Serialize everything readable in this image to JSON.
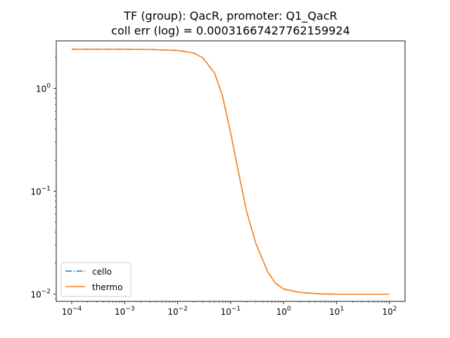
{
  "chart_data": {
    "type": "line",
    "title_line1": "TF (group): QacR, promoter: Q1_QacR",
    "title_line2": "coll err (log) = 0.00031667427762159924",
    "xlabel": "",
    "ylabel": "",
    "xscale": "log",
    "yscale": "log",
    "xlim": [
      0.0001,
      100
    ],
    "ylim": [
      0.0085,
      2.9
    ],
    "grid": false,
    "legend_position": "lower-left",
    "x_ticks": [
      {
        "value": 0.0001,
        "base": "10",
        "exp": "−4"
      },
      {
        "value": 0.001,
        "base": "10",
        "exp": "−3"
      },
      {
        "value": 0.01,
        "base": "10",
        "exp": "−2"
      },
      {
        "value": 0.1,
        "base": "10",
        "exp": "−1"
      },
      {
        "value": 1,
        "base": "10",
        "exp": "0"
      },
      {
        "value": 10,
        "base": "10",
        "exp": "1"
      },
      {
        "value": 100,
        "base": "10",
        "exp": "2"
      }
    ],
    "y_ticks": [
      {
        "value": 0.01,
        "base": "10",
        "exp": "−2"
      },
      {
        "value": 0.1,
        "base": "10",
        "exp": "−1"
      },
      {
        "value": 1,
        "base": "10",
        "exp": "0"
      }
    ],
    "x": [
      0.0001,
      0.0003,
      0.001,
      0.003,
      0.01,
      0.02,
      0.03,
      0.05,
      0.07,
      0.1,
      0.15,
      0.2,
      0.3,
      0.5,
      0.7,
      1,
      2,
      5,
      10,
      100
    ],
    "series": [
      {
        "name": "cello",
        "color": "#1f77b4",
        "linestyle": "dashdot",
        "values": [
          2.4,
          2.4,
          2.4,
          2.39,
          2.34,
          2.21,
          1.98,
          1.4,
          0.85,
          0.37,
          0.13,
          0.064,
          0.031,
          0.0165,
          0.0128,
          0.0112,
          0.0104,
          0.01005,
          0.01,
          0.01
        ]
      },
      {
        "name": "thermo",
        "color": "#ff7f0e",
        "linestyle": "solid",
        "values": [
          2.4,
          2.4,
          2.4,
          2.39,
          2.34,
          2.21,
          1.98,
          1.4,
          0.85,
          0.37,
          0.13,
          0.064,
          0.031,
          0.0165,
          0.0128,
          0.0112,
          0.0104,
          0.01005,
          0.01,
          0.01
        ]
      }
    ]
  }
}
